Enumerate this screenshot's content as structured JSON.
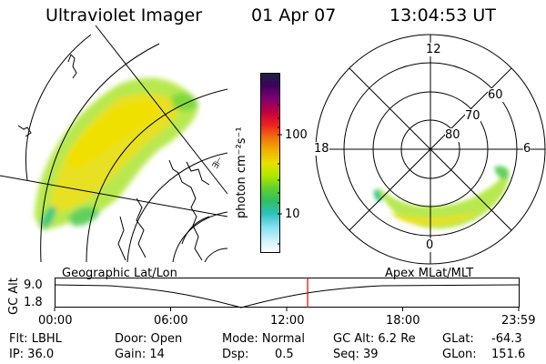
{
  "header": {
    "instrument": "Ultraviolet Imager",
    "date": "01 Apr 07",
    "time": "13:04:53 UT"
  },
  "colorbar": {
    "unit_label": "photon cm⁻²s⁻¹",
    "ticks": [
      "100",
      "10"
    ],
    "colors": [
      "#202040",
      "#400060",
      "#800070",
      "#c00040",
      "#f02020",
      "#f07010",
      "#f0b000",
      "#e8e000",
      "#b0e800",
      "#60d030",
      "#30c060",
      "#30c0c0",
      "#80e0f0",
      "#c8f0f8",
      "#ffffff"
    ]
  },
  "left_panel": {
    "coast_label": "∃⊢"
  },
  "polar_panel": {
    "mlt_labels": {
      "top": "12",
      "left": "18",
      "right": "6",
      "bottom": "0"
    },
    "lat_labels": [
      "60",
      "70",
      "80"
    ]
  },
  "timeline": {
    "left_label": "Geographic Lat/Lon",
    "right_label": "Apex MLat/MLT",
    "axis_label": "GC Alt",
    "y_top": "9.0",
    "y_bottom": "1.8",
    "x_ticks": [
      "00:00",
      "06:00",
      "12:00",
      "18:00",
      "23:59"
    ],
    "current_time_fraction": 0.5452
  },
  "info": {
    "flt": "Flt: LBHL",
    "ip": "IP: 36.0",
    "door": "Door: Open",
    "gain": "Gain: 14",
    "mode": "Mode: Normal",
    "dsp_label": "Dsp:",
    "dsp_value": "0.5",
    "gcalt": "GC Alt: 6.2 Re",
    "seq": "Seq: 39",
    "glat_label": "GLat:",
    "glat_value": "-64.3",
    "glon_label": "GLon:",
    "glon_value": "151.6"
  }
}
